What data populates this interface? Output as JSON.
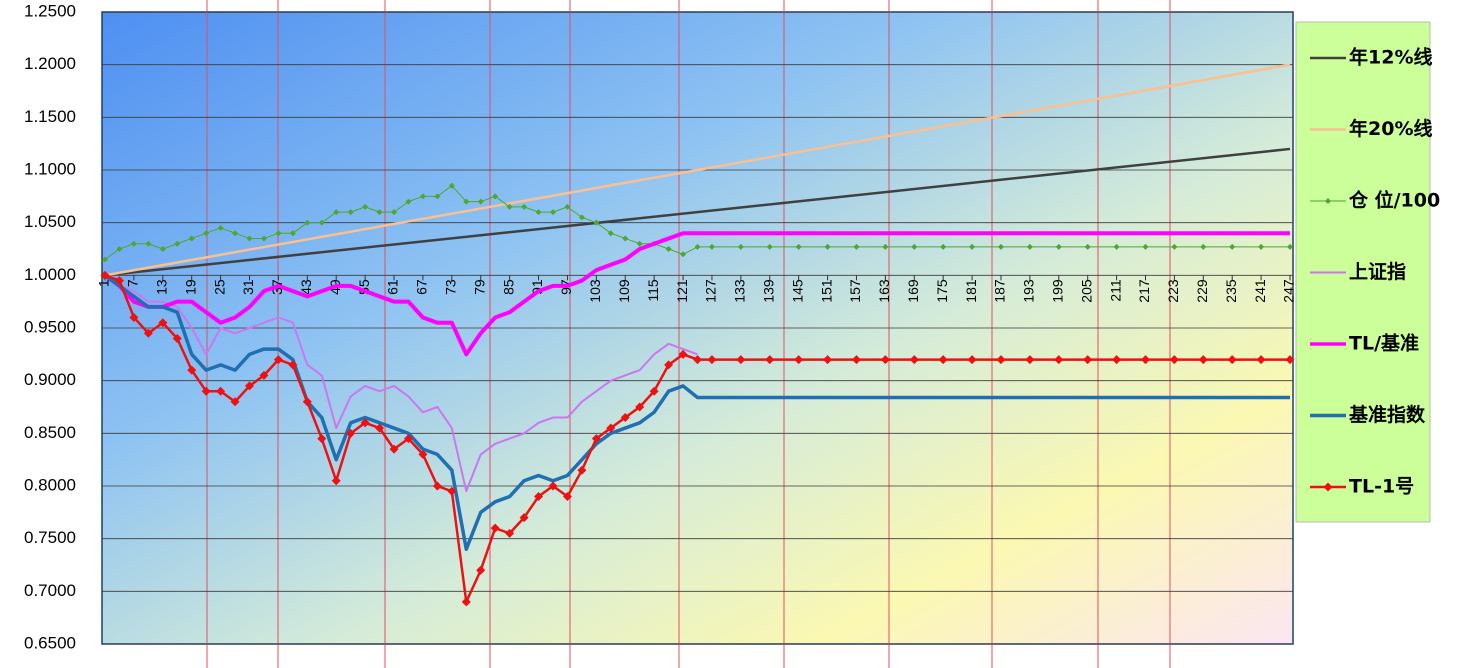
{
  "chart_data": {
    "type": "line",
    "legend": "right",
    "grid": true,
    "xlim": [
      1,
      247
    ],
    "xticks": [
      1,
      7,
      13,
      19,
      25,
      31,
      37,
      43,
      49,
      55,
      61,
      67,
      73,
      79,
      85,
      91,
      97,
      103,
      109,
      115,
      121,
      127,
      133,
      139,
      145,
      151,
      157,
      163,
      169,
      175,
      181,
      187,
      193,
      199,
      205,
      211,
      217,
      223,
      229,
      235,
      241,
      247
    ],
    "ylim": [
      0.65,
      1.25
    ],
    "yticks": [
      {
        "value": 0.65,
        "label": "0.6500"
      },
      {
        "value": 0.7,
        "label": "0.7000"
      },
      {
        "value": 0.75,
        "label": "0.7500"
      },
      {
        "value": 0.8,
        "label": "0.8000"
      },
      {
        "value": 0.85,
        "label": "0.8500"
      },
      {
        "value": 0.9,
        "label": "0.9000"
      },
      {
        "value": 0.95,
        "label": "0.9500"
      },
      {
        "value": 1.0,
        "label": "1.0000"
      },
      {
        "value": 1.05,
        "label": "1.0500"
      },
      {
        "value": 1.1,
        "label": "1.1000"
      },
      {
        "value": 1.15,
        "label": "1.1500"
      },
      {
        "value": 1.2,
        "label": "1.2000"
      },
      {
        "value": 1.25,
        "label": "1.2500"
      }
    ],
    "series": [
      {
        "name": "年12%线",
        "color": "#404040",
        "width": 2.5,
        "markers": false,
        "x": [
          1,
          247
        ],
        "values": [
          1.0,
          1.12
        ]
      },
      {
        "name": "年20%线",
        "color": "#fac08f",
        "width": 2.5,
        "markers": false,
        "x": [
          1,
          247
        ],
        "values": [
          1.0,
          1.2
        ]
      },
      {
        "name": "仓 位/100",
        "color": "#4ea72e",
        "width": 1,
        "markers": true,
        "x": [
          1,
          4,
          7,
          10,
          13,
          16,
          19,
          22,
          25,
          28,
          31,
          34,
          37,
          40,
          43,
          46,
          49,
          52,
          55,
          58,
          61,
          64,
          67,
          70,
          73,
          76,
          79,
          82,
          85,
          88,
          91,
          94,
          97,
          100,
          103,
          106,
          109,
          112,
          115,
          118,
          121,
          124,
          127,
          133,
          139,
          145,
          151,
          157,
          163,
          169,
          175,
          181,
          187,
          193,
          199,
          205,
          211,
          217,
          223,
          229,
          235,
          241,
          247
        ],
        "values": [
          1.015,
          1.025,
          1.03,
          1.03,
          1.025,
          1.03,
          1.035,
          1.04,
          1.045,
          1.04,
          1.035,
          1.035,
          1.04,
          1.04,
          1.05,
          1.05,
          1.06,
          1.06,
          1.065,
          1.06,
          1.06,
          1.07,
          1.075,
          1.075,
          1.085,
          1.07,
          1.07,
          1.075,
          1.065,
          1.065,
          1.06,
          1.06,
          1.065,
          1.055,
          1.05,
          1.04,
          1.035,
          1.03,
          1.03,
          1.025,
          1.02,
          1.027,
          1.027,
          1.027,
          1.027,
          1.027,
          1.027,
          1.027,
          1.027,
          1.027,
          1.027,
          1.027,
          1.027,
          1.027,
          1.027,
          1.027,
          1.027,
          1.027,
          1.027,
          1.027,
          1.027,
          1.027,
          1.027
        ]
      },
      {
        "name": "上证指",
        "color": "#cc77ee",
        "width": 2,
        "markers": false,
        "x": [
          1,
          4,
          7,
          10,
          13,
          16,
          19,
          22,
          25,
          28,
          31,
          34,
          37,
          40,
          43,
          46,
          49,
          52,
          55,
          58,
          61,
          64,
          67,
          70,
          73,
          76,
          79,
          82,
          85,
          88,
          91,
          94,
          97,
          100,
          103,
          106,
          109,
          112,
          115,
          118,
          121,
          124
        ],
        "values": [
          1.0,
          0.99,
          0.985,
          0.975,
          0.975,
          0.97,
          0.95,
          0.925,
          0.95,
          0.945,
          0.95,
          0.955,
          0.96,
          0.955,
          0.915,
          0.905,
          0.855,
          0.885,
          0.895,
          0.89,
          0.895,
          0.885,
          0.87,
          0.875,
          0.855,
          0.795,
          0.83,
          0.84,
          0.845,
          0.85,
          0.86,
          0.865,
          0.865,
          0.88,
          0.89,
          0.9,
          0.905,
          0.91,
          0.925,
          0.935,
          0.93,
          0.925
        ]
      },
      {
        "name": "TL/基准",
        "color": "#ff00ff",
        "width": 4,
        "markers": false,
        "x": [
          1,
          4,
          7,
          10,
          13,
          16,
          19,
          22,
          25,
          28,
          31,
          34,
          37,
          40,
          43,
          46,
          49,
          52,
          55,
          58,
          61,
          64,
          67,
          70,
          73,
          76,
          79,
          82,
          85,
          88,
          91,
          94,
          97,
          100,
          103,
          106,
          109,
          112,
          115,
          118,
          121,
          124,
          247
        ],
        "values": [
          1.0,
          0.99,
          0.975,
          0.97,
          0.97,
          0.975,
          0.975,
          0.965,
          0.955,
          0.96,
          0.97,
          0.985,
          0.99,
          0.985,
          0.98,
          0.985,
          0.99,
          0.99,
          0.985,
          0.98,
          0.975,
          0.975,
          0.96,
          0.955,
          0.955,
          0.925,
          0.945,
          0.96,
          0.965,
          0.975,
          0.985,
          0.99,
          0.99,
          0.995,
          1.005,
          1.01,
          1.015,
          1.025,
          1.03,
          1.035,
          1.04,
          1.04,
          1.04
        ]
      },
      {
        "name": "基准指数",
        "color": "#1f6fb2",
        "width": 3.5,
        "markers": false,
        "x": [
          1,
          4,
          7,
          10,
          13,
          16,
          19,
          22,
          25,
          28,
          31,
          34,
          37,
          40,
          43,
          46,
          49,
          52,
          55,
          58,
          61,
          64,
          67,
          70,
          73,
          76,
          79,
          82,
          85,
          88,
          91,
          94,
          97,
          100,
          103,
          106,
          109,
          112,
          115,
          118,
          121,
          124,
          247
        ],
        "values": [
          1.0,
          0.99,
          0.98,
          0.97,
          0.97,
          0.965,
          0.925,
          0.91,
          0.915,
          0.91,
          0.925,
          0.93,
          0.93,
          0.92,
          0.88,
          0.865,
          0.825,
          0.86,
          0.865,
          0.86,
          0.855,
          0.85,
          0.835,
          0.83,
          0.815,
          0.74,
          0.775,
          0.785,
          0.79,
          0.805,
          0.81,
          0.805,
          0.81,
          0.825,
          0.84,
          0.85,
          0.855,
          0.86,
          0.87,
          0.89,
          0.895,
          0.884,
          0.884
        ]
      },
      {
        "name": "TL-1号",
        "color": "#ee1111",
        "width": 2.5,
        "markers": true,
        "x": [
          1,
          4,
          7,
          10,
          13,
          16,
          19,
          22,
          25,
          28,
          31,
          34,
          37,
          40,
          43,
          46,
          49,
          52,
          55,
          58,
          61,
          64,
          67,
          70,
          73,
          76,
          79,
          82,
          85,
          88,
          91,
          94,
          97,
          100,
          103,
          106,
          109,
          112,
          115,
          118,
          121,
          124,
          127,
          133,
          139,
          145,
          151,
          157,
          163,
          169,
          175,
          181,
          187,
          193,
          199,
          205,
          211,
          217,
          223,
          229,
          235,
          241,
          247
        ],
        "values": [
          1.0,
          0.995,
          0.96,
          0.945,
          0.955,
          0.94,
          0.91,
          0.89,
          0.89,
          0.88,
          0.895,
          0.905,
          0.92,
          0.915,
          0.88,
          0.845,
          0.805,
          0.85,
          0.86,
          0.855,
          0.835,
          0.845,
          0.83,
          0.8,
          0.795,
          0.69,
          0.72,
          0.76,
          0.755,
          0.77,
          0.79,
          0.8,
          0.79,
          0.815,
          0.845,
          0.855,
          0.865,
          0.875,
          0.89,
          0.915,
          0.925,
          0.92,
          0.92,
          0.92,
          0.92,
          0.92,
          0.92,
          0.92,
          0.92,
          0.92,
          0.92,
          0.92,
          0.92,
          0.92,
          0.92,
          0.92,
          0.92,
          0.92,
          0.92,
          0.92,
          0.92,
          0.92,
          0.92
        ]
      }
    ]
  }
}
